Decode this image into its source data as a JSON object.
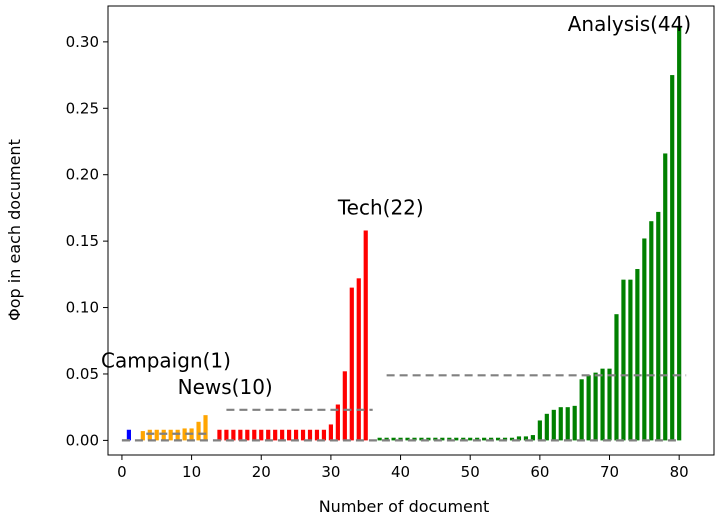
{
  "chart_data": {
    "type": "bar",
    "title": "",
    "xlabel": "Number of document",
    "ylabel": "Φop in each document",
    "xlim": [
      -2,
      85
    ],
    "ylim": [
      -0.011,
      0.327
    ],
    "xticks": [
      0,
      10,
      20,
      30,
      40,
      50,
      60,
      70,
      80
    ],
    "yticks": [
      0.0,
      0.05,
      0.1,
      0.15,
      0.2,
      0.25,
      0.3
    ],
    "ytick_labels": [
      "0.00",
      "0.05",
      "0.10",
      "0.15",
      "0.20",
      "0.25",
      "0.30"
    ],
    "grid": false,
    "series": [
      {
        "color": "#0000ff",
        "x": [
          1
        ],
        "values": [
          0.008
        ]
      },
      {
        "color": "#ffa500",
        "x": [
          3,
          4,
          5,
          6,
          7,
          8,
          9,
          10,
          11,
          12
        ],
        "values": [
          0.007,
          0.008,
          0.008,
          0.008,
          0.008,
          0.008,
          0.009,
          0.009,
          0.014,
          0.019
        ]
      },
      {
        "color": "#ff0000",
        "x": [
          14,
          15,
          16,
          17,
          18,
          19,
          20,
          21,
          22,
          23,
          24,
          25,
          26,
          27,
          28,
          29,
          30,
          31,
          32,
          33,
          34,
          35
        ],
        "values": [
          0.008,
          0.008,
          0.008,
          0.008,
          0.008,
          0.008,
          0.008,
          0.008,
          0.008,
          0.008,
          0.008,
          0.008,
          0.008,
          0.008,
          0.008,
          0.008,
          0.012,
          0.027,
          0.052,
          0.115,
          0.122,
          0.158
        ]
      },
      {
        "color": "#008000",
        "x": [
          37,
          38,
          39,
          40,
          41,
          42,
          43,
          44,
          45,
          46,
          47,
          48,
          49,
          50,
          51,
          52,
          53,
          54,
          55,
          56,
          57,
          58,
          59,
          60,
          61,
          62,
          63,
          64,
          65,
          66,
          67,
          68,
          69,
          70,
          71,
          72,
          73,
          74,
          75,
          76,
          77,
          78,
          79,
          80
        ],
        "values": [
          0.002,
          0.002,
          0.002,
          0.002,
          0.002,
          0.002,
          0.002,
          0.002,
          0.002,
          0.002,
          0.002,
          0.002,
          0.002,
          0.002,
          0.002,
          0.002,
          0.002,
          0.002,
          0.002,
          0.002,
          0.003,
          0.003,
          0.004,
          0.015,
          0.02,
          0.023,
          0.025,
          0.025,
          0.026,
          0.046,
          0.049,
          0.051,
          0.054,
          0.054,
          0.095,
          0.121,
          0.121,
          0.129,
          0.152,
          0.165,
          0.172,
          0.216,
          0.275,
          0.311
        ]
      }
    ],
    "mean_lines": [
      {
        "x": [
          0,
          1.8
        ],
        "y": 0.0
      },
      {
        "x": [
          3.5,
          12.5
        ],
        "y": 0.005
      },
      {
        "x": [
          15,
          36
        ],
        "y": 0.023
      },
      {
        "x": [
          38,
          81
        ],
        "y": 0.049
      },
      {
        "x": [
          0,
          80
        ],
        "y": 0.0
      }
    ],
    "annotations": [
      {
        "text": "Campaign(1)",
        "x": -3,
        "y": 0.055
      },
      {
        "text": "News(10)",
        "x": 8,
        "y": 0.035
      },
      {
        "text": "Tech(22)",
        "x": 31,
        "y": 0.17
      },
      {
        "text": "Analysis(44)",
        "x": 64,
        "y": 0.308
      }
    ]
  }
}
